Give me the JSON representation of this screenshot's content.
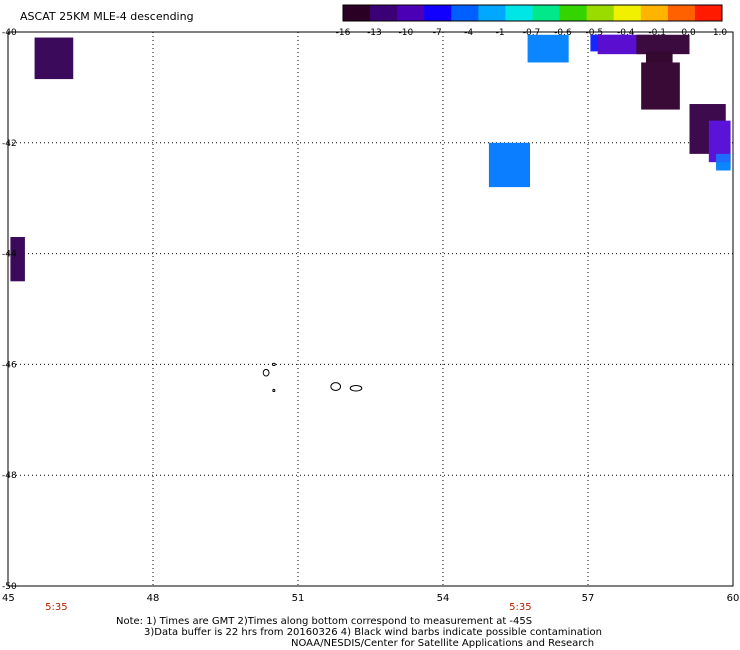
{
  "title": "ASCAT 25KM MLE-4 descending",
  "colorbar": {
    "stops": [
      "#2a0025",
      "#3b0075",
      "#4b00b6",
      "#1200ff",
      "#0060ff",
      "#00a8ff",
      "#00e6e6",
      "#00e88a",
      "#33d400",
      "#9bdc00",
      "#f0f000",
      "#ffb400",
      "#ff6000",
      "#ff1a00"
    ],
    "labels": [
      "-16",
      "-13",
      "-10",
      "-7",
      "-4",
      "-1",
      "-0.7",
      "-0.6",
      "-0.5",
      "-0.4",
      "-0.1",
      "0.0",
      "1.0"
    ]
  },
  "map": {
    "lon_ticks": [
      "45",
      "48",
      "51",
      "54",
      "57",
      "60"
    ],
    "lat_ticks": [
      "-40",
      "-42",
      "-44",
      "-46",
      "-48",
      "-50"
    ],
    "lon_range": [
      45,
      60
    ],
    "lat_range": [
      -50,
      -40
    ],
    "grid": "dotted",
    "time_labels": [
      {
        "text": "5:35",
        "lon": 46
      },
      {
        "text": "5:35",
        "lon": 55.6
      }
    ]
  },
  "cells": [
    {
      "lon0": 45.55,
      "lon1": 46.35,
      "lat0": -40.1,
      "lat1": -40.85,
      "color": "#3c0a5a"
    },
    {
      "lon0": 45.05,
      "lon1": 45.35,
      "lat0": -43.7,
      "lat1": -44.5,
      "color": "#3c0a5a"
    },
    {
      "lon0": 55.75,
      "lon1": 56.6,
      "lat0": -40.05,
      "lat1": -40.55,
      "color": "#0b86ff"
    },
    {
      "lon0": 54.95,
      "lon1": 55.8,
      "lat0": -42.0,
      "lat1": -42.8,
      "color": "#0b7dff"
    },
    {
      "lon0": 57.05,
      "lon1": 57.95,
      "lat0": -40.05,
      "lat1": -40.35,
      "color": "#1526ff"
    },
    {
      "lon0": 57.2,
      "lon1": 58.3,
      "lat0": -40.05,
      "lat1": -40.4,
      "color": "#5a0fd0"
    },
    {
      "lon0": 58.0,
      "lon1": 59.1,
      "lat0": -40.05,
      "lat1": -40.4,
      "color": "#3b0b40"
    },
    {
      "lon0": 58.2,
      "lon1": 58.75,
      "lat0": -40.35,
      "lat1": -41.3,
      "color": "#33092f"
    },
    {
      "lon0": 58.1,
      "lon1": 58.9,
      "lat0": -40.55,
      "lat1": -41.4,
      "color": "#3a0a37"
    },
    {
      "lon0": 59.1,
      "lon1": 59.85,
      "lat0": -41.3,
      "lat1": -42.2,
      "color": "#3e0a4e"
    },
    {
      "lon0": 59.5,
      "lon1": 59.95,
      "lat0": -41.6,
      "lat1": -42.35,
      "color": "#5a14d8"
    },
    {
      "lon0": 59.65,
      "lon1": 59.95,
      "lat0": -42.2,
      "lat1": -42.45,
      "color": "#1f6bff"
    },
    {
      "lon0": 59.65,
      "lon1": 59.95,
      "lat0": -42.35,
      "lat1": -42.5,
      "color": "#0b86ff"
    }
  ],
  "islands": [
    {
      "lon": 50.34,
      "lat": -46.15,
      "rx": 0.06,
      "ry": 0.06
    },
    {
      "lon": 50.5,
      "lat": -46.0,
      "rx": 0.03,
      "ry": 0.02
    },
    {
      "lon": 50.5,
      "lat": -46.47,
      "rx": 0.02,
      "ry": 0.02
    },
    {
      "lon": 51.78,
      "lat": -46.4,
      "rx": 0.1,
      "ry": 0.07
    },
    {
      "lon": 52.2,
      "lat": -46.43,
      "rx": 0.12,
      "ry": 0.05
    }
  ],
  "notes": {
    "line1": "Note: 1) Times are GMT 2)Times along bottom correspond to measurement at -45S",
    "line2": "3)Data buffer is 22 hrs from 20160326 4) Black wind barbs indicate possible contamination",
    "line3": "NOAA/NESDIS/Center for Satellite Applications and Research"
  }
}
